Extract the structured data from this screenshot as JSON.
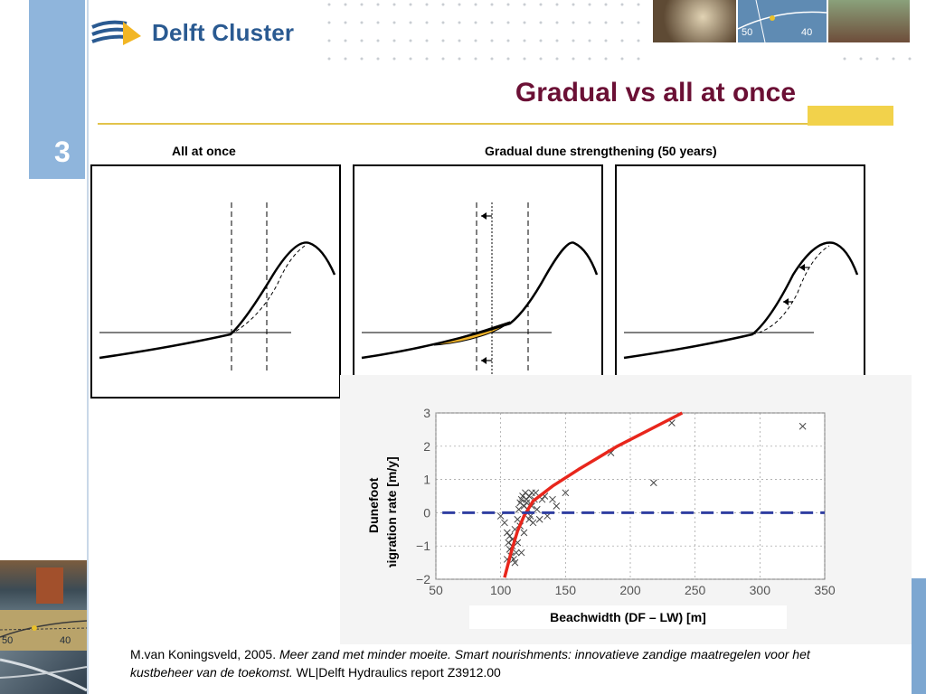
{
  "logo": {
    "text": "Delft Cluster",
    "icon": "delft-cluster-logo-icon"
  },
  "header_photos": {
    "map_labels": [
      "50",
      "40"
    ]
  },
  "side_photos": {
    "map_labels": [
      "50",
      "40"
    ]
  },
  "slide": {
    "number": "3",
    "title": "Gradual vs all at once"
  },
  "panels": {
    "left_label": "All at once",
    "right_label": "Gradual dune strengthening (50 years)"
  },
  "chart_data": {
    "type": "scatter",
    "xlabel": "Beachwidth (DF – LW) [m]",
    "ylabel_lines": [
      "Dunefoot",
      "migration  rate [m/y]"
    ],
    "xlim": [
      50,
      350
    ],
    "ylim": [
      -2,
      3
    ],
    "x_ticks": [
      "50",
      "100",
      "150",
      "200",
      "250",
      "300",
      "350"
    ],
    "y_ticks": [
      "3",
      "2",
      "1",
      "0",
      "−1",
      "−2"
    ],
    "grid": true,
    "series": [
      {
        "type": "scatter",
        "marker": "x",
        "points": [
          [
            100,
            -0.1
          ],
          [
            103,
            -0.3
          ],
          [
            105,
            -0.6
          ],
          [
            106,
            -0.9
          ],
          [
            107,
            -1.1
          ],
          [
            108,
            -1.3
          ],
          [
            109,
            -0.8
          ],
          [
            110,
            -1.4
          ],
          [
            111,
            -0.5
          ],
          [
            112,
            -1.2
          ],
          [
            113,
            -0.2
          ],
          [
            114,
            0.1
          ],
          [
            115,
            0.3
          ],
          [
            116,
            0.4
          ],
          [
            117,
            0.5
          ],
          [
            118,
            0.2
          ],
          [
            119,
            0.6
          ],
          [
            120,
            0.3
          ],
          [
            121,
            0.1
          ],
          [
            122,
            0.5
          ],
          [
            123,
            -0.1
          ],
          [
            124,
            0.2
          ],
          [
            125,
            -0.3
          ],
          [
            126,
            0.4
          ],
          [
            127,
            0.6
          ],
          [
            128,
            0.1
          ],
          [
            130,
            -0.2
          ],
          [
            132,
            0.4
          ],
          [
            134,
            0.5
          ],
          [
            136,
            -0.1
          ],
          [
            140,
            0.4
          ],
          [
            143,
            0.2
          ],
          [
            150,
            0.6
          ],
          [
            185,
            1.8
          ],
          [
            218,
            0.9
          ],
          [
            232,
            2.7
          ],
          [
            333,
            2.6
          ],
          [
            105,
            -1.4
          ],
          [
            107,
            -0.7
          ],
          [
            109,
            -1.0
          ],
          [
            111,
            -1.5
          ],
          [
            113,
            -0.9
          ],
          [
            115,
            -0.4
          ],
          [
            116,
            -1.2
          ],
          [
            118,
            -0.6
          ],
          [
            120,
            0.4
          ],
          [
            122,
            -0.2
          ],
          [
            124,
            0.6
          ]
        ]
      },
      {
        "type": "line",
        "style": "trend",
        "color": "#e8261c",
        "points": [
          [
            103,
            -1.95
          ],
          [
            108,
            -1.2
          ],
          [
            113,
            -0.55
          ],
          [
            118,
            -0.1
          ],
          [
            125,
            0.35
          ],
          [
            140,
            0.8
          ],
          [
            160,
            1.3
          ],
          [
            190,
            2.0
          ],
          [
            240,
            3.0
          ]
        ]
      },
      {
        "type": "line",
        "style": "zero",
        "color": "#2f3ea1",
        "points": [
          [
            55,
            0
          ],
          [
            350,
            0
          ]
        ]
      }
    ]
  },
  "reference": {
    "author": "M.van Koningsveld, 2005.",
    "title": "Meer zand met minder moeite. Smart nourishments: innovatieve zandige maatregelen voor het kustbeheer van de toekomst.",
    "publisher": "WL|Delft Hydraulics report Z3912.00"
  },
  "colors": {
    "title": "#6b1035",
    "accent_bar": "#8fb5dc",
    "gold": "#f2d24b",
    "nourishment": "#f0b32a"
  }
}
